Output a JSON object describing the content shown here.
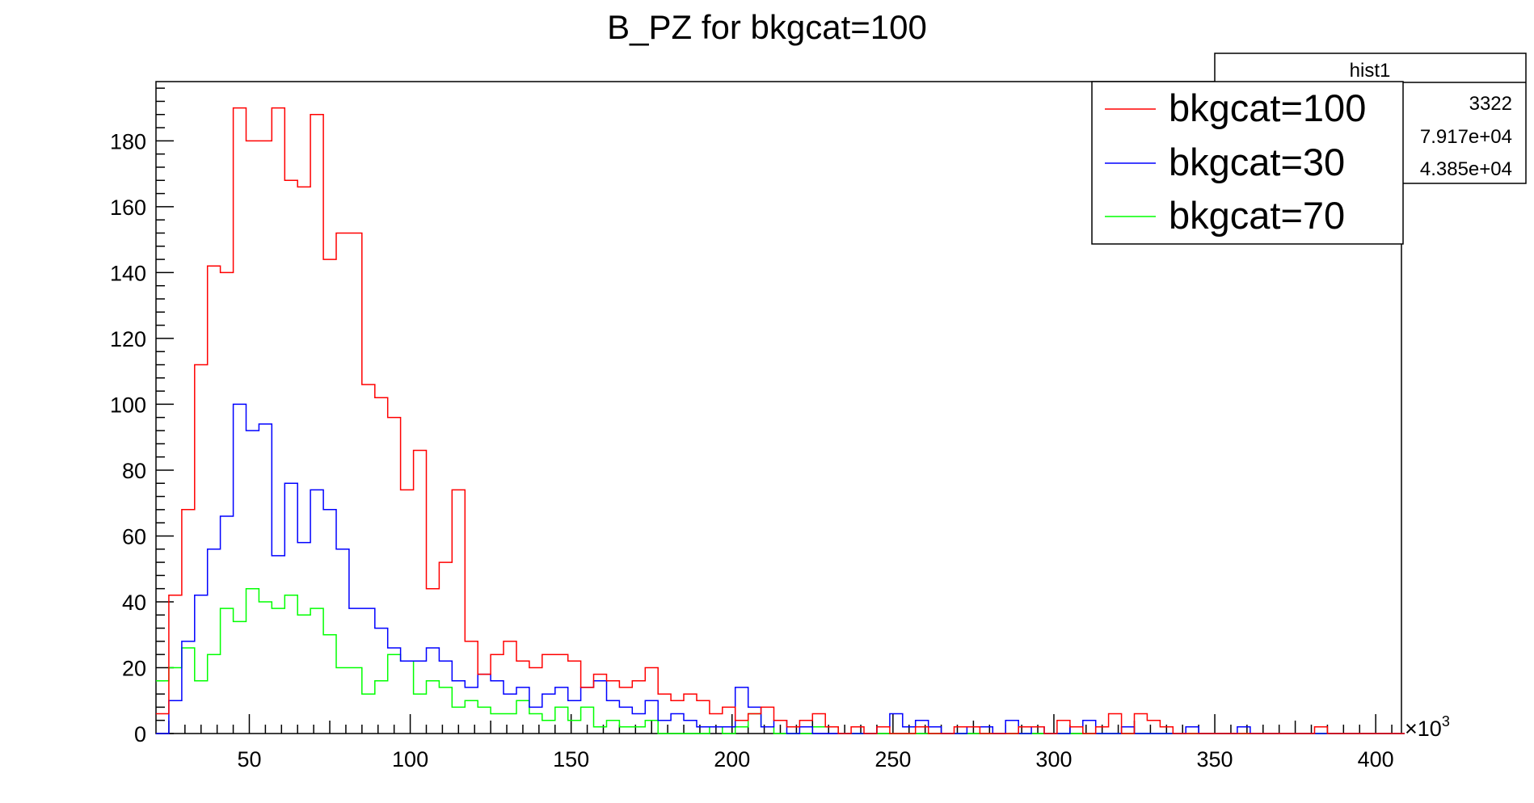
{
  "chart_data": {
    "type": "histogram",
    "title": "B_PZ for bkgcat=100",
    "xlabel": "",
    "ylabel": "",
    "x_multiplier_label": "×10",
    "x_multiplier_exp": "3",
    "xlim": [
      21,
      408
    ],
    "ylim": [
      0,
      198
    ],
    "xticks": [
      50,
      100,
      150,
      200,
      250,
      300,
      350,
      400
    ],
    "yticks": [
      0,
      20,
      40,
      60,
      80,
      100,
      120,
      140,
      160,
      180
    ],
    "x_edges": [
      21,
      25,
      29,
      33,
      37,
      41,
      45,
      49,
      53,
      57,
      61,
      65,
      69,
      73,
      77,
      81,
      85,
      89,
      93,
      97,
      101,
      105,
      109,
      113,
      117,
      121,
      125,
      129,
      133,
      137,
      141,
      145,
      149,
      153,
      157,
      161,
      165,
      169,
      173,
      177,
      181,
      185,
      189,
      193,
      197,
      201,
      205,
      209,
      213,
      217,
      221,
      225,
      229,
      233,
      237,
      241,
      245,
      249,
      253,
      257,
      261,
      265,
      269,
      273,
      277,
      281,
      285,
      289,
      293,
      297,
      301,
      305,
      309,
      313,
      317,
      321,
      325,
      329,
      333,
      337,
      341,
      345,
      349,
      353,
      357,
      361,
      365,
      369,
      373,
      377,
      381,
      385,
      389,
      393,
      397,
      401,
      405,
      409
    ],
    "series": [
      {
        "name": "bkgcat=100",
        "color": "#ff0000",
        "values": [
          6,
          42,
          68,
          112,
          142,
          140,
          190,
          180,
          180,
          190,
          168,
          166,
          188,
          144,
          152,
          152,
          106,
          102,
          96,
          74,
          86,
          44,
          52,
          74,
          28,
          18,
          24,
          28,
          22,
          20,
          24,
          24,
          22,
          14,
          18,
          16,
          14,
          16,
          20,
          12,
          10,
          12,
          10,
          6,
          8,
          4,
          6,
          8,
          4,
          2,
          4,
          6,
          2,
          0,
          2,
          0,
          2,
          0,
          0,
          2,
          0,
          0,
          2,
          2,
          0,
          0,
          0,
          2,
          2,
          0,
          4,
          2,
          0,
          2,
          6,
          0,
          6,
          4,
          2,
          0,
          0,
          0,
          0,
          0,
          0,
          0,
          0,
          0,
          0,
          0,
          2,
          0,
          0,
          0,
          0,
          0,
          0
        ]
      },
      {
        "name": "bkgcat=30",
        "color": "#0000ff",
        "values": [
          0,
          10,
          28,
          42,
          56,
          66,
          100,
          92,
          94,
          54,
          76,
          58,
          74,
          68,
          56,
          38,
          38,
          32,
          26,
          22,
          22,
          26,
          22,
          16,
          14,
          18,
          16,
          12,
          14,
          8,
          12,
          14,
          10,
          14,
          16,
          10,
          8,
          6,
          10,
          4,
          6,
          4,
          2,
          2,
          2,
          14,
          8,
          2,
          4,
          0,
          2,
          0,
          0,
          0,
          0,
          0,
          2,
          6,
          2,
          4,
          2,
          0,
          0,
          2,
          2,
          0,
          4,
          0,
          2,
          0,
          0,
          2,
          4,
          0,
          0,
          2,
          0,
          0,
          0,
          0,
          2,
          0,
          0,
          0,
          2,
          0,
          0,
          0,
          0,
          0,
          0,
          0,
          0,
          0,
          0,
          0,
          0
        ]
      },
      {
        "name": "bkgcat=70",
        "color": "#00ff00",
        "values": [
          16,
          20,
          26,
          16,
          24,
          38,
          34,
          44,
          40,
          38,
          42,
          36,
          38,
          30,
          20,
          20,
          12,
          16,
          24,
          22,
          12,
          16,
          14,
          8,
          10,
          8,
          6,
          6,
          10,
          6,
          4,
          8,
          4,
          8,
          2,
          4,
          2,
          2,
          4,
          0,
          0,
          0,
          0,
          2,
          0,
          2,
          6,
          2,
          0,
          0,
          0,
          2,
          2,
          0,
          0,
          0,
          0,
          0,
          0,
          0,
          0,
          0,
          0,
          0,
          0,
          0,
          0,
          0,
          0,
          0,
          0,
          0,
          0,
          0,
          0,
          0,
          0,
          0,
          0,
          0,
          0,
          0,
          0,
          0,
          0,
          0,
          0,
          0,
          0,
          0,
          0,
          0,
          0,
          0,
          0,
          0,
          0
        ]
      }
    ],
    "stats_box": {
      "title": "hist1",
      "values": [
        "3322",
        "7.917e+04",
        "4.385e+04"
      ]
    },
    "legend": {
      "entries": [
        "bkgcat=100",
        "bkgcat=30",
        "bkgcat=70"
      ]
    }
  }
}
